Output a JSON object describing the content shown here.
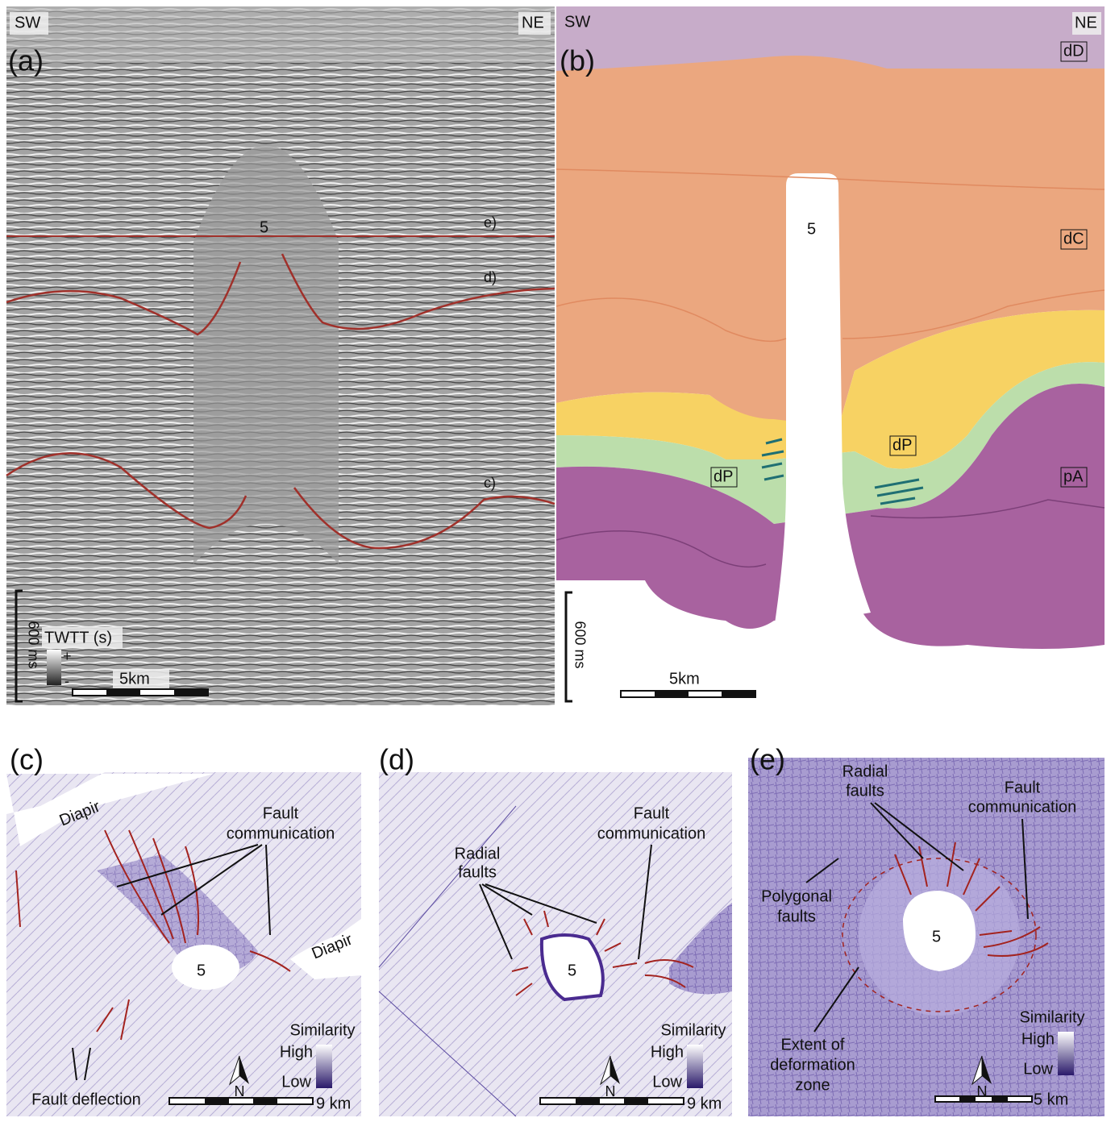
{
  "panel_a": {
    "label": "(a)",
    "left_direction": "SW",
    "right_direction": "NE",
    "salt_body": "5",
    "horizons": [
      "e)",
      "d)",
      "c)"
    ],
    "time_scale": "600 ms",
    "legend_title": "TWTT (s)",
    "legend_plus": "+",
    "legend_minus": "-",
    "length_scale": "5km"
  },
  "panel_b": {
    "label": "(b)",
    "left_direction": "SW",
    "right_direction": "NE",
    "salt_body": "5",
    "units": [
      "dD",
      "dC",
      "dP",
      "dP",
      "pA"
    ],
    "time_scale": "600 ms",
    "length_scale": "5km"
  },
  "panel_c": {
    "label": "(c)",
    "diapirs": [
      "Diapir",
      "Diapir"
    ],
    "fault_communication": [
      "Fault",
      "communication"
    ],
    "salt_body": "5",
    "fault_deflection": "Fault deflection",
    "legend_title": "Similarity",
    "legend_high": "High",
    "legend_low": "Low",
    "north": "N",
    "length_scale": "9 km"
  },
  "panel_d": {
    "label": "(d)",
    "radial_faults": [
      "Radial",
      "faults"
    ],
    "fault_communication": [
      "Fault",
      "communication"
    ],
    "salt_body": "5",
    "legend_title": "Similarity",
    "legend_high": "High",
    "legend_low": "Low",
    "north": "N",
    "length_scale": "9 km"
  },
  "panel_e": {
    "label": "(e)",
    "radial_faults": [
      "Radial",
      "faults"
    ],
    "fault_communication": [
      "Fault",
      "communication"
    ],
    "polygonal_faults": [
      "Polygonal",
      "faults"
    ],
    "salt_body": "5",
    "deformation_zone": [
      "Extent of",
      "deformation",
      "zone"
    ],
    "legend_title": "Similarity",
    "legend_high": "High",
    "legend_low": "Low",
    "north": "N",
    "length_scale": "5 km"
  }
}
